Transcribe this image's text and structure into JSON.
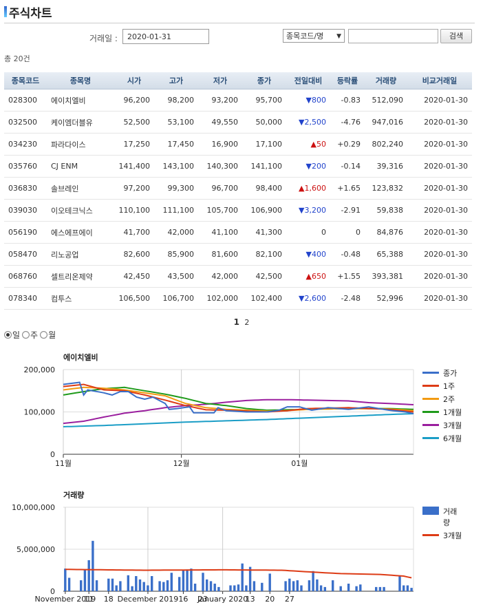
{
  "page": {
    "title": "주식차트",
    "total_count": "총 20건"
  },
  "search": {
    "date_label": "거래일 :",
    "date_value": "2020-01-31",
    "select_value": "종목코드/명",
    "code_value": "",
    "button_label": "검색"
  },
  "table": {
    "headers": [
      "종목코드",
      "종목명",
      "시가",
      "고가",
      "저가",
      "종가",
      "전일대비",
      "등락률",
      "거래량",
      "비교거래일"
    ],
    "rows": [
      {
        "code": "028300",
        "name": "에이치엘비",
        "open": "96,200",
        "high": "98,200",
        "low": "93,200",
        "close": "95,700",
        "dir": "down",
        "mark": "▼",
        "change": "800",
        "rate": "-0.83",
        "volume": "512,090",
        "date": "2020-01-30"
      },
      {
        "code": "032500",
        "name": "케이엠더블유",
        "open": "52,500",
        "high": "53,100",
        "low": "49,550",
        "close": "50,000",
        "dir": "down",
        "mark": "▼",
        "change": "2,500",
        "rate": "-4.76",
        "volume": "947,016",
        "date": "2020-01-30"
      },
      {
        "code": "034230",
        "name": "파라다이스",
        "open": "17,250",
        "high": "17,450",
        "low": "16,900",
        "close": "17,100",
        "dir": "up",
        "mark": "▲",
        "change": "50",
        "rate": "+0.29",
        "volume": "802,240",
        "date": "2020-01-30"
      },
      {
        "code": "035760",
        "name": "CJ ENM",
        "open": "141,400",
        "high": "143,100",
        "low": "140,300",
        "close": "141,100",
        "dir": "down",
        "mark": "▼",
        "change": "200",
        "rate": "-0.14",
        "volume": "39,316",
        "date": "2020-01-30"
      },
      {
        "code": "036830",
        "name": "솔브레인",
        "open": "97,200",
        "high": "99,300",
        "low": "96,700",
        "close": "98,400",
        "dir": "up",
        "mark": "▲",
        "change": "1,600",
        "rate": "+1.65",
        "volume": "123,832",
        "date": "2020-01-30"
      },
      {
        "code": "039030",
        "name": "이오테크닉스",
        "open": "110,100",
        "high": "111,100",
        "low": "105,700",
        "close": "106,900",
        "dir": "down",
        "mark": "▼",
        "change": "3,200",
        "rate": "-2.91",
        "volume": "59,838",
        "date": "2020-01-30"
      },
      {
        "code": "056190",
        "name": "에스에프에이",
        "open": "41,700",
        "high": "42,000",
        "low": "41,100",
        "close": "41,300",
        "dir": "flat",
        "mark": "",
        "change": "0",
        "rate": "0",
        "volume": "84,876",
        "date": "2020-01-30"
      },
      {
        "code": "058470",
        "name": "리노공업",
        "open": "82,600",
        "high": "85,900",
        "low": "81,600",
        "close": "82,100",
        "dir": "down",
        "mark": "▼",
        "change": "400",
        "rate": "-0.48",
        "volume": "65,388",
        "date": "2020-01-30"
      },
      {
        "code": "068760",
        "name": "셀트리온제약",
        "open": "42,450",
        "high": "43,500",
        "low": "42,000",
        "close": "42,500",
        "dir": "up",
        "mark": "▲",
        "change": "650",
        "rate": "+1.55",
        "volume": "393,381",
        "date": "2020-01-30"
      },
      {
        "code": "078340",
        "name": "컴투스",
        "open": "106,500",
        "high": "106,700",
        "low": "102,000",
        "close": "102,400",
        "dir": "down",
        "mark": "▼",
        "change": "2,600",
        "rate": "-2.48",
        "volume": "52,996",
        "date": "2020-01-30"
      }
    ]
  },
  "pager": {
    "current": "1",
    "next": "2"
  },
  "period": {
    "options": [
      "일",
      "주",
      "월"
    ],
    "selected": "일"
  },
  "colors": {
    "close": "#3a6fc9",
    "w1": "#dd3b15",
    "w2": "#f29a11",
    "m1": "#1f9a1a",
    "m3": "#9a1e9e",
    "m6": "#1a9dc6",
    "volume": "#3a6fc9",
    "vol_avg": "#dd3b15"
  },
  "chart_data": [
    {
      "type": "line",
      "title": "에이치엘비",
      "ylim": [
        0,
        200000
      ],
      "yticks": [
        "0",
        "100,000",
        "200,000"
      ],
      "xtick_labels": [
        "11월",
        "12월",
        "01월"
      ],
      "xtick_index": [
        0,
        29,
        58
      ],
      "n_points": 87,
      "legend": [
        "종가",
        "1주",
        "2주",
        "1개월",
        "3개월",
        "6개월"
      ],
      "series": [
        {
          "name": "종가",
          "key": "close",
          "anchors": [
            [
              0,
              165000
            ],
            [
              4,
              170000
            ],
            [
              5,
              140000
            ],
            [
              6,
              152000
            ],
            [
              10,
              145000
            ],
            [
              12,
              140000
            ],
            [
              14,
              148000
            ],
            [
              16,
              148000
            ],
            [
              18,
              135000
            ],
            [
              20,
              130000
            ],
            [
              22,
              135000
            ],
            [
              25,
              120000
            ],
            [
              26,
              106000
            ],
            [
              28,
              108000
            ],
            [
              31,
              112000
            ],
            [
              32,
              98000
            ],
            [
              37,
              98000
            ],
            [
              38,
              110000
            ],
            [
              40,
              103000
            ],
            [
              45,
              100000
            ],
            [
              50,
              100000
            ],
            [
              53,
              104000
            ],
            [
              55,
              112000
            ],
            [
              58,
              112000
            ],
            [
              61,
              104000
            ],
            [
              65,
              110000
            ],
            [
              70,
              106000
            ],
            [
              75,
              112000
            ],
            [
              80,
              104000
            ],
            [
              84,
              100000
            ],
            [
              86,
              96000
            ]
          ]
        },
        {
          "name": "1주",
          "key": "w1",
          "anchors": [
            [
              0,
              160000
            ],
            [
              5,
              165000
            ],
            [
              10,
              152000
            ],
            [
              15,
              150000
            ],
            [
              20,
              140000
            ],
            [
              25,
              128000
            ],
            [
              30,
              115000
            ],
            [
              35,
              105000
            ],
            [
              40,
              104000
            ],
            [
              45,
              102000
            ],
            [
              50,
              100000
            ],
            [
              55,
              103000
            ],
            [
              60,
              108000
            ],
            [
              70,
              110000
            ],
            [
              80,
              106000
            ],
            [
              86,
              100000
            ]
          ]
        },
        {
          "name": "2주",
          "key": "w2",
          "anchors": [
            [
              0,
              152000
            ],
            [
              5,
              158000
            ],
            [
              10,
              156000
            ],
            [
              15,
              152000
            ],
            [
              20,
              145000
            ],
            [
              25,
              138000
            ],
            [
              30,
              120000
            ],
            [
              35,
              110000
            ],
            [
              40,
              106000
            ],
            [
              45,
              104000
            ],
            [
              50,
              102000
            ],
            [
              55,
              103000
            ],
            [
              60,
              106000
            ],
            [
              70,
              108000
            ],
            [
              80,
              107000
            ],
            [
              86,
              103000
            ]
          ]
        },
        {
          "name": "1개월",
          "key": "m1",
          "anchors": [
            [
              0,
              140000
            ],
            [
              5,
              148000
            ],
            [
              10,
              155000
            ],
            [
              15,
              158000
            ],
            [
              20,
              150000
            ],
            [
              25,
              142000
            ],
            [
              30,
              132000
            ],
            [
              35,
              120000
            ],
            [
              40,
              115000
            ],
            [
              45,
              108000
            ],
            [
              50,
              104000
            ],
            [
              55,
              105000
            ],
            [
              60,
              106000
            ],
            [
              70,
              108000
            ],
            [
              80,
              108000
            ],
            [
              86,
              106000
            ]
          ]
        },
        {
          "name": "3개월",
          "key": "m3",
          "anchors": [
            [
              0,
              73000
            ],
            [
              5,
              78000
            ],
            [
              10,
              88000
            ],
            [
              15,
              97000
            ],
            [
              20,
              103000
            ],
            [
              25,
              110000
            ],
            [
              30,
              115000
            ],
            [
              35,
              118000
            ],
            [
              40,
              123000
            ],
            [
              45,
              127000
            ],
            [
              50,
              129000
            ],
            [
              55,
              129000
            ],
            [
              60,
              128000
            ],
            [
              65,
              127000
            ],
            [
              70,
              126000
            ],
            [
              75,
              122000
            ],
            [
              80,
              120000
            ],
            [
              86,
              117000
            ]
          ]
        },
        {
          "name": "6개월",
          "key": "m6",
          "anchors": [
            [
              0,
              65000
            ],
            [
              10,
              68000
            ],
            [
              20,
              72000
            ],
            [
              30,
              76000
            ],
            [
              40,
              79000
            ],
            [
              50,
              82000
            ],
            [
              60,
              86000
            ],
            [
              70,
              90000
            ],
            [
              80,
              94000
            ],
            [
              86,
              96000
            ]
          ]
        }
      ]
    },
    {
      "type": "bar",
      "title": "거래량",
      "ylim": [
        0,
        10000000
      ],
      "yticks": [
        "0",
        "5,000,000",
        "10,000,000"
      ],
      "xtick_labels": [
        "November 2019",
        "11",
        "18",
        "December 2019",
        "16",
        "23",
        "January 2020",
        "13",
        "20",
        "27"
      ],
      "xtick_index": [
        0,
        6,
        11,
        21,
        30,
        35,
        40,
        47,
        52,
        57
      ],
      "legend": [
        "거래량",
        "3개월"
      ],
      "volumes": [
        2700000,
        1600000,
        0,
        0,
        1300000,
        2500000,
        3700000,
        6000000,
        1300000,
        0,
        0,
        1500000,
        1500000,
        700000,
        1200000,
        0,
        1900000,
        600000,
        1800000,
        1400000,
        1100000,
        700000,
        1800000,
        0,
        1200000,
        1100000,
        1300000,
        2200000,
        0,
        1700000,
        2500000,
        2600000,
        2700000,
        900000,
        0,
        2200000,
        1400000,
        1200000,
        900000,
        500000,
        0,
        0,
        700000,
        700000,
        800000,
        3300000,
        700000,
        2900000,
        1200000,
        0,
        1000000,
        0,
        2100000,
        0,
        0,
        0,
        1200000,
        1500000,
        1200000,
        1300000,
        700000,
        0,
        1300000,
        2400000,
        1400000,
        700000,
        500000,
        0,
        1300000,
        0,
        600000,
        0,
        900000,
        0,
        600000,
        800000,
        0,
        0,
        0,
        500000,
        500000,
        500000,
        0,
        0,
        0,
        1800000,
        700000,
        700000,
        400000
      ],
      "avg_anchors": [
        [
          0,
          2600000
        ],
        [
          20,
          2500000
        ],
        [
          40,
          2550000
        ],
        [
          55,
          2500000
        ],
        [
          62,
          2300000
        ],
        [
          70,
          2100000
        ],
        [
          80,
          2000000
        ],
        [
          86,
          1800000
        ],
        [
          88,
          1600000
        ]
      ]
    }
  ]
}
